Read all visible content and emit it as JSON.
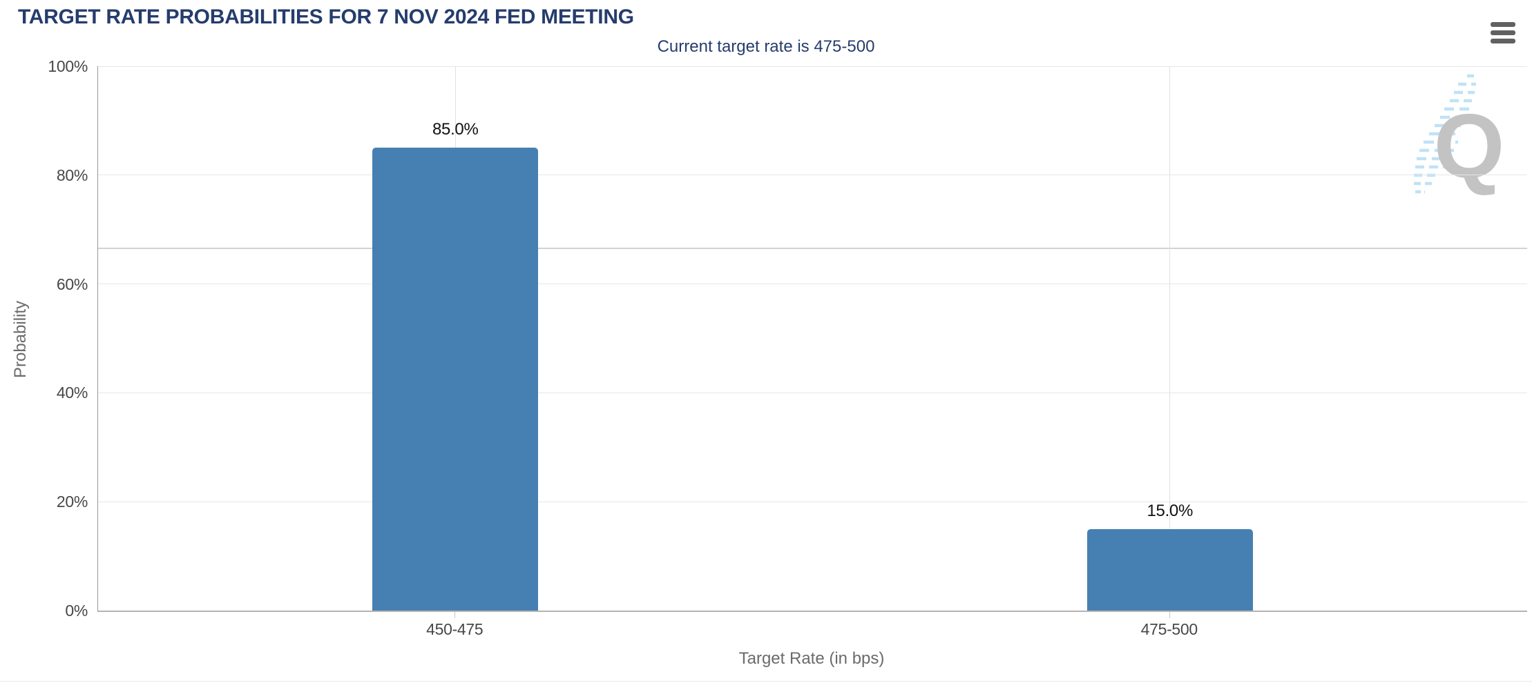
{
  "header": {
    "menu_icon": "hamburger-icon"
  },
  "watermark": {
    "letter": "Q"
  },
  "chart_data": {
    "type": "bar",
    "title": "TARGET RATE PROBABILITIES FOR 7 NOV 2024 FED MEETING",
    "subtitle": "Current target rate is 475-500",
    "categories": [
      "450-475",
      "475-500"
    ],
    "values": [
      85.0,
      15.0
    ],
    "value_labels": [
      "85.0%",
      "15.0%"
    ],
    "xlabel": "Target Rate (in bps)",
    "ylabel": "Probability",
    "ylim": [
      0,
      100
    ],
    "ytick_values": [
      0,
      20,
      40,
      60,
      80,
      100
    ],
    "ytick_labels": [
      "0%",
      "20%",
      "40%",
      "60%",
      "80%",
      "100%"
    ],
    "grid": true,
    "extra_gridline_value": 66.5,
    "legend_position": "none",
    "colors": {
      "bar": "#4680b2",
      "title_text": "#253c6d",
      "axis_label_text": "#474747",
      "axis_title_text": "#6b6b6b",
      "gridline": "#e6e6e6",
      "watermark_gray": "#c3c3c3",
      "watermark_blue": "#bfe2f6"
    }
  }
}
